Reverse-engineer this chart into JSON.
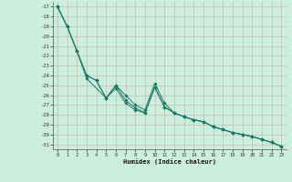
{
  "xlabel": "Humidex (Indice chaleur)",
  "bg_color": "#cceedd",
  "line_color": "#1a7a6a",
  "xlim": [
    -0.5,
    23.5
  ],
  "ylim": [
    -31.5,
    -16.5
  ],
  "xticks": [
    0,
    1,
    2,
    3,
    4,
    5,
    6,
    7,
    8,
    9,
    10,
    11,
    12,
    13,
    14,
    15,
    16,
    17,
    18,
    19,
    20,
    21,
    22,
    23
  ],
  "yticks": [
    -17,
    -18,
    -19,
    -20,
    -21,
    -22,
    -23,
    -24,
    -25,
    -26,
    -27,
    -28,
    -29,
    -30,
    -31
  ],
  "line1_x": [
    0,
    1,
    2,
    3,
    4,
    5,
    6,
    7,
    8,
    9,
    10,
    11,
    12,
    13,
    14,
    15,
    16,
    17,
    18,
    19,
    20,
    21,
    22,
    23
  ],
  "line1_y": [
    -17.0,
    -19.0,
    -21.5,
    -24.0,
    -24.5,
    -26.3,
    -25.3,
    -26.8,
    -27.5,
    -27.8,
    -25.2,
    -27.2,
    -27.8,
    -28.2,
    -28.5,
    -28.7,
    -29.2,
    -29.5,
    -29.8,
    -30.0,
    -30.2,
    -30.5,
    -30.8,
    -31.2
  ],
  "line2_x": [
    0,
    1,
    2,
    3,
    5,
    6,
    7,
    8,
    9,
    10,
    11,
    12,
    13,
    14,
    15,
    16,
    17,
    18,
    19,
    20,
    21,
    22,
    23
  ],
  "line2_y": [
    -17.0,
    -19.0,
    -21.5,
    -24.3,
    -26.3,
    -25.0,
    -26.0,
    -27.0,
    -27.5,
    -24.8,
    -26.8,
    -27.8,
    -28.2,
    -28.5,
    -28.7,
    -29.2,
    -29.5,
    -29.8,
    -30.0,
    -30.2,
    -30.5,
    -30.8,
    -31.2
  ],
  "line3_x": [
    0,
    1,
    2,
    3,
    4,
    5,
    6,
    7,
    8,
    9,
    10,
    11,
    12,
    13,
    14,
    15,
    16,
    17,
    18,
    19,
    20,
    21,
    22,
    23
  ],
  "line3_y": [
    -17.0,
    -19.0,
    -21.5,
    -24.0,
    -24.5,
    -26.3,
    -25.0,
    -26.5,
    -27.3,
    -27.8,
    -25.2,
    -27.2,
    -27.8,
    -28.2,
    -28.5,
    -28.7,
    -29.2,
    -29.5,
    -29.8,
    -30.0,
    -30.2,
    -30.5,
    -30.8,
    -31.2
  ]
}
